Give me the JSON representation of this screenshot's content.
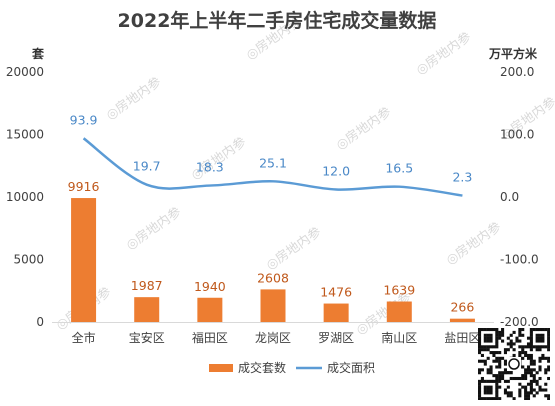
{
  "chart_data": {
    "type": "bar+line",
    "title": "2022年上半年二手房住宅成交量数据",
    "categories": [
      "全市",
      "宝安区",
      "福田区",
      "龙岗区",
      "罗湖区",
      "南山区",
      "盐田区"
    ],
    "series": [
      {
        "name": "成交套数",
        "type": "bar",
        "axis": "left",
        "color": "#ed7d31",
        "values": [
          9916,
          1987,
          1940,
          2608,
          1476,
          1639,
          266
        ]
      },
      {
        "name": "成交面积",
        "type": "line",
        "axis": "right",
        "color": "#5b9bd5",
        "values": [
          93.9,
          19.7,
          18.3,
          25.1,
          12.0,
          16.5,
          2.3
        ]
      }
    ],
    "y_left": {
      "unit": "套",
      "ylim": [
        0,
        20000
      ],
      "ticks": [
        "0",
        "5000",
        "10000",
        "15000",
        "20000"
      ]
    },
    "y_right": {
      "unit": "万平方米",
      "ylim": [
        -200,
        200
      ],
      "ticks": [
        "-200.0",
        "-100.0",
        "0.0",
        "100.0",
        "200.0"
      ]
    },
    "bar_labels": [
      "9916",
      "1987",
      "1940",
      "2608",
      "1476",
      "1639",
      "266"
    ],
    "line_labels": [
      "93.9",
      "19.7",
      "18.3",
      "25.1",
      "12.0",
      "16.5",
      "2.3"
    ],
    "legend": [
      "成交套数",
      "成交面积"
    ],
    "legend_position": "bottom",
    "grid": false
  },
  "watermark": "房地内参",
  "qr_icon": "qr-code-icon"
}
